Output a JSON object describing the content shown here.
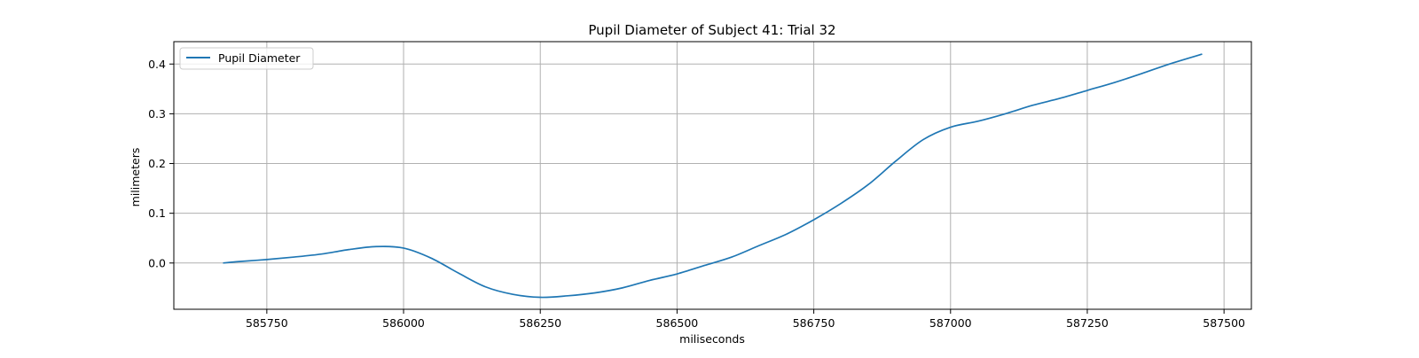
{
  "chart_data": {
    "type": "line",
    "title": "Pupil Diameter of Subject 41: Trial 32",
    "xlabel": "miliseconds",
    "ylabel": "milimeters",
    "xlim": [
      585580,
      587550
    ],
    "ylim": [
      -0.093,
      0.445
    ],
    "xticks": [
      585750,
      586000,
      586250,
      586500,
      586750,
      587000,
      587250,
      587500
    ],
    "xtick_labels": [
      "585750",
      "586000",
      "586250",
      "586500",
      "586750",
      "587000",
      "587250",
      "587500"
    ],
    "yticks": [
      0.0,
      0.1,
      0.2,
      0.3,
      0.4
    ],
    "ytick_labels": [
      "0.0",
      "0.1",
      "0.2",
      "0.3",
      "0.4"
    ],
    "grid": true,
    "legend": "upper-left",
    "series": [
      {
        "name": "Pupil Diameter",
        "color": "#1f77b4",
        "x": [
          585670,
          585700,
          585750,
          585800,
          585850,
          585900,
          585950,
          586000,
          586050,
          586100,
          586150,
          586200,
          586250,
          586300,
          586350,
          586400,
          586450,
          586500,
          586550,
          586600,
          586650,
          586700,
          586750,
          586800,
          586850,
          586900,
          586950,
          587000,
          587050,
          587100,
          587150,
          587200,
          587250,
          587300,
          587350,
          587400,
          587460
        ],
        "y": [
          0.0,
          0.003,
          0.007,
          0.012,
          0.018,
          0.027,
          0.033,
          0.03,
          0.01,
          -0.02,
          -0.048,
          -0.063,
          -0.069,
          -0.066,
          -0.06,
          -0.05,
          -0.035,
          -0.022,
          -0.005,
          0.012,
          0.035,
          0.058,
          0.087,
          0.12,
          0.158,
          0.205,
          0.248,
          0.273,
          0.285,
          0.3,
          0.317,
          0.331,
          0.347,
          0.363,
          0.381,
          0.4,
          0.42
        ]
      }
    ]
  }
}
